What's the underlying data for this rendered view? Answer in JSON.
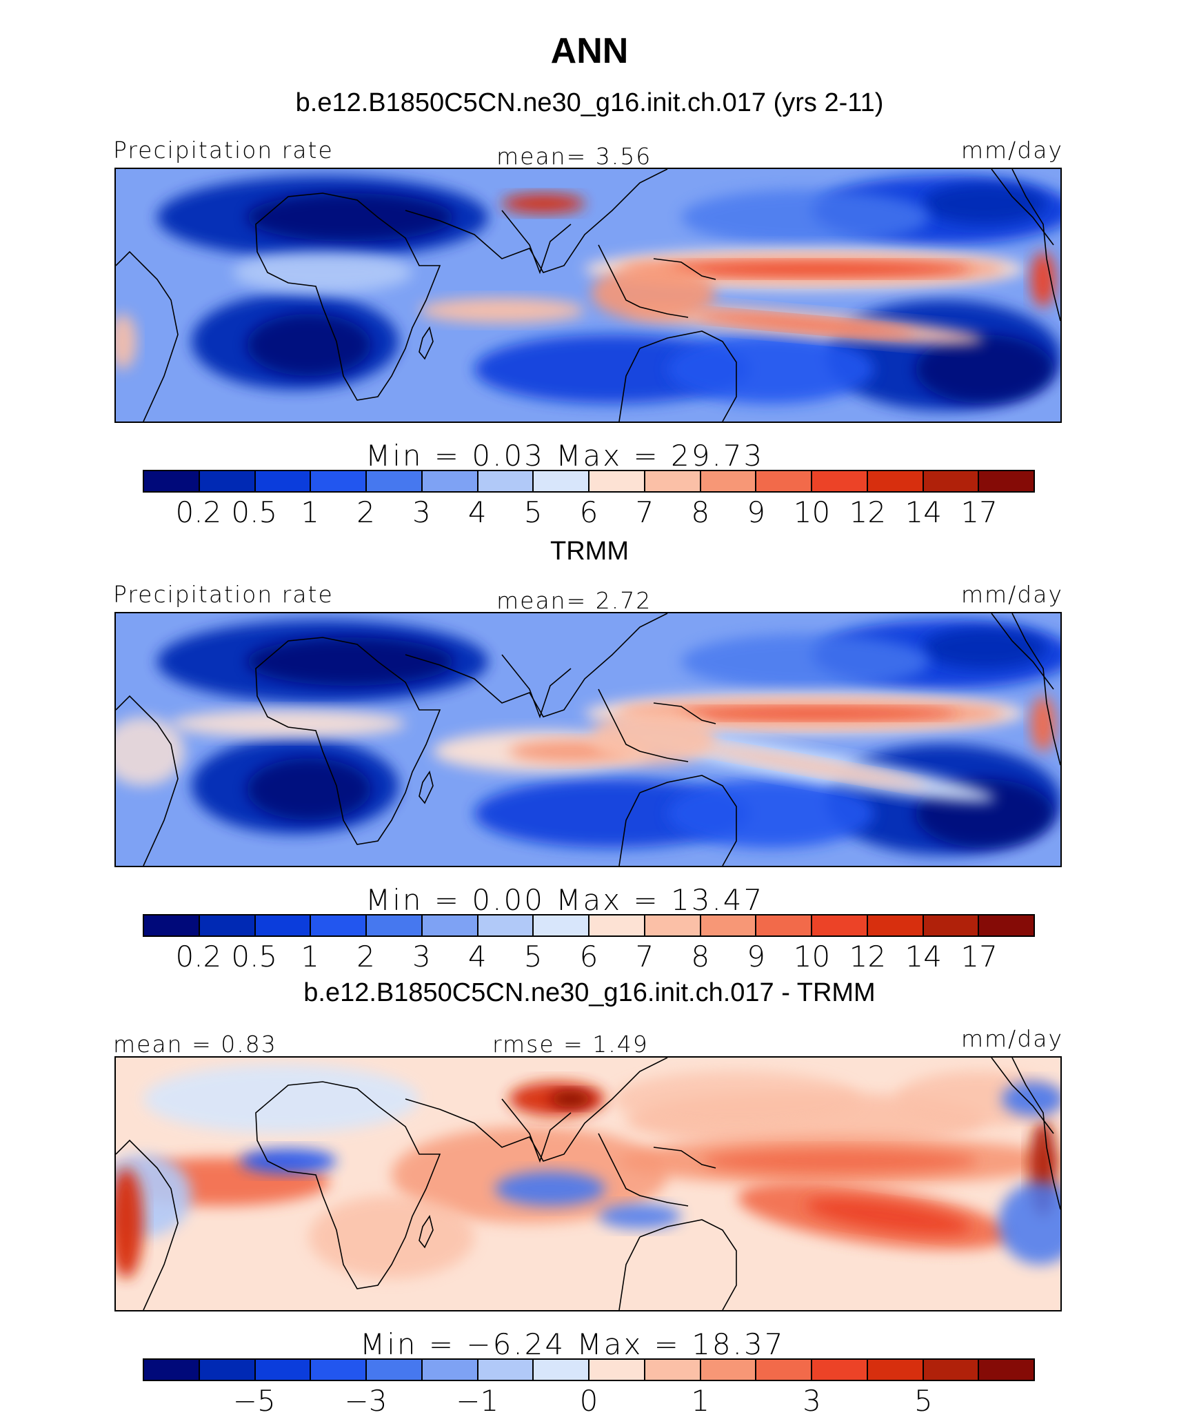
{
  "figure": {
    "title": "ANN"
  },
  "panels": [
    {
      "heading": "b.e12.B1850C5CN.ne30_g16.init.ch.017 (yrs 2-11)",
      "left_label": "Precipitation rate",
      "center_label": "mean=    3.56",
      "units": "mm/day",
      "minmax": "Min  =    0.03  Max  =   29.73",
      "field_style": "model",
      "colorbar": {
        "colors": [
          "#00097a",
          "#0029b4",
          "#0b3ddc",
          "#2256ef",
          "#4678ef",
          "#7ea2f4",
          "#b1c9f8",
          "#d8e6fb",
          "#fde2d4",
          "#fbc0a7",
          "#f79776",
          "#f26a4a",
          "#ec4327",
          "#d72f0e",
          "#b0210a",
          "#850b06"
        ],
        "ticks": [
          "0.2",
          "0.5",
          "1",
          "2",
          "3",
          "4",
          "5",
          "6",
          "7",
          "8",
          "9",
          "10",
          "12",
          "14",
          "17"
        ]
      }
    },
    {
      "heading": "TRMM",
      "left_label": "Precipitation rate",
      "center_label": "mean=    2.72",
      "units": "mm/day",
      "minmax": "Min  =    0.00  Max  =   13.47",
      "field_style": "obs",
      "colorbar": {
        "colors": [
          "#00097a",
          "#0029b4",
          "#0b3ddc",
          "#2256ef",
          "#4678ef",
          "#7ea2f4",
          "#b1c9f8",
          "#d8e6fb",
          "#fde2d4",
          "#fbc0a7",
          "#f79776",
          "#f26a4a",
          "#ec4327",
          "#d72f0e",
          "#b0210a",
          "#850b06"
        ],
        "ticks": [
          "0.2",
          "0.5",
          "1",
          "2",
          "3",
          "4",
          "5",
          "6",
          "7",
          "8",
          "9",
          "10",
          "12",
          "14",
          "17"
        ]
      }
    },
    {
      "heading": "b.e12.B1850C5CN.ne30_g16.init.ch.017 - TRMM",
      "left_label": "mean =    0.83",
      "center_label": "rmse =    1.49",
      "units": "mm/day",
      "minmax": "Min  =  −6.24  Max  =   18.37",
      "field_style": "diff",
      "colorbar": {
        "colors": [
          "#00097a",
          "#0029b4",
          "#0b3ddc",
          "#2256ef",
          "#4678ef",
          "#7ea2f4",
          "#b1c9f8",
          "#d8e6fb",
          "#fde2d4",
          "#fbc0a7",
          "#f79776",
          "#f26a4a",
          "#ec4327",
          "#d72f0e",
          "#b0210a",
          "#850b06"
        ],
        "ticks": [
          "−5",
          "−3",
          "−1",
          "0",
          "1",
          "3",
          "5"
        ]
      }
    }
  ]
}
